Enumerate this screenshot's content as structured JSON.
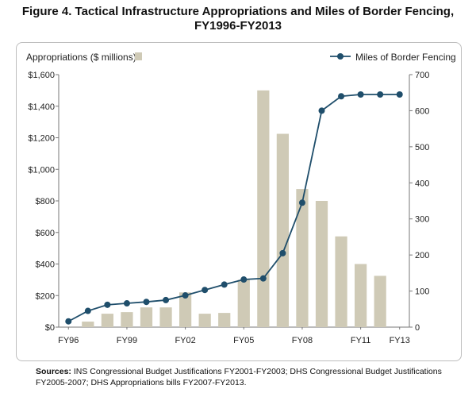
{
  "title_line1": "Figure 4. Tactical Infrastructure Appropriations and Miles of Border Fencing,",
  "title_line2": "FY1996-FY2013",
  "sources_label": "Sources:",
  "sources_text": "INS Congressional Budget Justifications FY2001-FY2003; DHS Congressional Budget Justifications FY2005-2007; DHS Appropriations bills FY2007-FY2013.",
  "colors": {
    "bar": "#cfcab6",
    "line": "#1f4e6b",
    "axis": "#777777"
  },
  "chart_data": {
    "type": "bar",
    "title": "Figure 4. Tactical Infrastructure Appropriations and Miles of Border Fencing, FY1996-FY2013",
    "categories": [
      "FY96",
      "FY97",
      "FY98",
      "FY99",
      "FY00",
      "FY01",
      "FY02",
      "FY03",
      "FY04",
      "FY05",
      "FY06",
      "FY07",
      "FY08",
      "FY09",
      "FY10",
      "FY11",
      "FY12",
      "FY13"
    ],
    "x_tick_labels": [
      "FY96",
      "FY99",
      "FY02",
      "FY05",
      "FY08",
      "FY11",
      "FY13"
    ],
    "series": [
      {
        "name": "Appropriations ($ millions)",
        "type": "bar",
        "axis": "left",
        "values": [
          0,
          35,
          85,
          95,
          125,
          125,
          220,
          85,
          90,
          300,
          1500,
          1225,
          875,
          800,
          575,
          400,
          325,
          0
        ]
      },
      {
        "name": "Miles of Border Fencing",
        "type": "line",
        "axis": "right",
        "values": [
          16,
          45,
          62,
          66,
          70,
          75,
          88,
          103,
          118,
          132,
          135,
          205,
          345,
          600,
          640,
          645,
          645,
          645
        ]
      }
    ],
    "left_axis": {
      "label": "Appropriations ($ millions)",
      "ylim": [
        0,
        1600
      ],
      "ticks": [
        0,
        200,
        400,
        600,
        800,
        1000,
        1200,
        1400,
        1600
      ],
      "tick_labels": [
        "$0",
        "$200",
        "$400",
        "$600",
        "$800",
        "$1,000",
        "$1,200",
        "$1,400",
        "$1,600"
      ]
    },
    "right_axis": {
      "label": "Miles of Border Fencing",
      "ylim": [
        0,
        700
      ],
      "ticks": [
        0,
        100,
        200,
        300,
        400,
        500,
        600,
        700
      ],
      "tick_labels": [
        "0",
        "100",
        "200",
        "300",
        "400",
        "500",
        "600",
        "700"
      ]
    },
    "legend": [
      {
        "label": "Appropriations ($ millions)",
        "marker": "square",
        "placement": "top-left"
      },
      {
        "label": "Miles of Border Fencing",
        "marker": "line-dot",
        "placement": "top-right"
      }
    ],
    "grid": false
  }
}
